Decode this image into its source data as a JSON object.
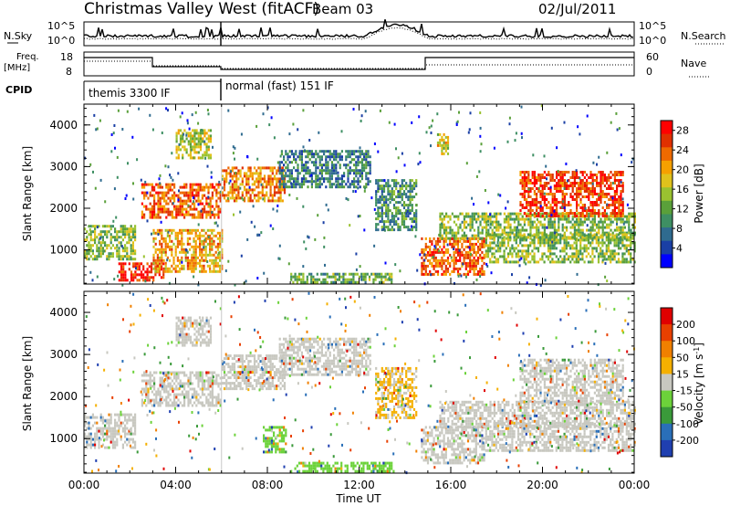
{
  "header": {
    "title": "Christmas Valley West (fitACF)",
    "beam": "Beam 03",
    "date": "02/Jul/2011"
  },
  "left_labels": {
    "nsky": "N.Sky",
    "freq_line1": "Freq.",
    "freq_line2": "[MHz]",
    "cpid": "CPID"
  },
  "right_labels": {
    "nsearch": "N.Search",
    "nave": "Nave"
  },
  "panel_ticks": {
    "noise_left_top": "10^5",
    "noise_left_bottom": "10^0",
    "noise_right_top": "10^5",
    "noise_right_bottom": "10^0",
    "freq_left_top": "18",
    "freq_left_bottom": "8",
    "freq_right_top": "60",
    "freq_right_bottom": "0"
  },
  "cpid_segments": [
    {
      "label": "themis 3300 IF",
      "start_hour": 0,
      "end_hour": 6
    },
    {
      "label": "normal (fast) 151 IF",
      "start_hour": 6,
      "end_hour": 24
    }
  ],
  "chart_data": [
    {
      "type": "heatmap",
      "name": "Power",
      "ylabel": "Slant Range [km]",
      "xlabel": "",
      "xlim": [
        0,
        24
      ],
      "ylim": [
        180,
        4500
      ],
      "yticks": [
        1000,
        2000,
        3000,
        4000
      ],
      "colorbar": {
        "label": "Power [dB]",
        "ticks": [
          "4",
          "8",
          "12",
          "16",
          "20",
          "24",
          "28"
        ],
        "range": [
          0,
          30
        ],
        "colors": [
          "#0000ff",
          "#1a3fa5",
          "#2f6b8f",
          "#3e8f63",
          "#5aa03a",
          "#9ac230",
          "#e0c21c",
          "#f5a000",
          "#ee6a00",
          "#e03000",
          "#ff0000"
        ]
      },
      "regions": [
        {
          "x": [
            0.0,
            2.2
          ],
          "y": [
            800,
            1600
          ],
          "value": 14
        },
        {
          "x": [
            2.5,
            6.0
          ],
          "y": [
            1800,
            2600
          ],
          "value": 24
        },
        {
          "x": [
            6.0,
            8.8
          ],
          "y": [
            2200,
            3000
          ],
          "value": 22
        },
        {
          "x": [
            1.5,
            3.5
          ],
          "y": [
            300,
            700
          ],
          "value": 27
        },
        {
          "x": [
            3.0,
            6.0
          ],
          "y": [
            500,
            1500
          ],
          "value": 20
        },
        {
          "x": [
            8.5,
            12.5
          ],
          "y": [
            2500,
            3400
          ],
          "value": 8
        },
        {
          "x": [
            12.7,
            14.5
          ],
          "y": [
            1500,
            2700
          ],
          "value": 10
        },
        {
          "x": [
            14.7,
            17.5
          ],
          "y": [
            400,
            1300
          ],
          "value": 24
        },
        {
          "x": [
            15.5,
            24.0
          ],
          "y": [
            1300,
            1900
          ],
          "value": 14
        },
        {
          "x": [
            17.5,
            24.0
          ],
          "y": [
            700,
            1400
          ],
          "value": 14
        },
        {
          "x": [
            19.0,
            23.5
          ],
          "y": [
            1800,
            2900
          ],
          "value": 26
        },
        {
          "x": [
            9.0,
            13.5
          ],
          "y": [
            200,
            450
          ],
          "value": 12
        },
        {
          "x": [
            15.4,
            15.9
          ],
          "y": [
            3300,
            3800
          ],
          "value": 18
        },
        {
          "x": [
            4.0,
            5.5
          ],
          "y": [
            3200,
            3900
          ],
          "value": 16
        }
      ]
    },
    {
      "type": "heatmap",
      "name": "Velocity",
      "ylabel": "Slant Range [km]",
      "xlabel": "Time UT",
      "xlim": [
        0,
        24
      ],
      "ylim": [
        180,
        4500
      ],
      "xticks": [
        "00:00",
        "04:00",
        "08:00",
        "12:00",
        "16:00",
        "20:00",
        "00:00"
      ],
      "yticks": [
        1000,
        2000,
        3000,
        4000
      ],
      "colorbar": {
        "label": "Velocity [m s^-1]",
        "ticks": [
          "200",
          "100",
          "50",
          "15",
          "-15",
          "-50",
          "-100",
          "-200"
        ],
        "range": [
          -250,
          250
        ],
        "colors": [
          "#1f3fb0",
          "#2a6fb8",
          "#3a9a3a",
          "#6cd23a",
          "#c8c8c0",
          "#f5b000",
          "#f08000",
          "#e84000",
          "#e00000"
        ]
      },
      "regions": [
        {
          "x": [
            0.0,
            2.2
          ],
          "y": [
            800,
            1600
          ],
          "value": 0
        },
        {
          "x": [
            2.5,
            6.0
          ],
          "y": [
            1800,
            2600
          ],
          "value": 0
        },
        {
          "x": [
            6.0,
            8.8
          ],
          "y": [
            2200,
            3000
          ],
          "value": 0
        },
        {
          "x": [
            8.5,
            12.5
          ],
          "y": [
            2500,
            3400
          ],
          "value": 0
        },
        {
          "x": [
            7.8,
            8.8
          ],
          "y": [
            700,
            1300
          ],
          "value": -60
        },
        {
          "x": [
            9.0,
            13.5
          ],
          "y": [
            200,
            450
          ],
          "value": -60
        },
        {
          "x": [
            12.7,
            14.5
          ],
          "y": [
            1500,
            2700
          ],
          "value": 30
        },
        {
          "x": [
            14.7,
            17.5
          ],
          "y": [
            400,
            1300
          ],
          "value": 0
        },
        {
          "x": [
            15.5,
            24.0
          ],
          "y": [
            1300,
            1900
          ],
          "value": 0
        },
        {
          "x": [
            17.5,
            24.0
          ],
          "y": [
            700,
            1400
          ],
          "value": 0
        },
        {
          "x": [
            19.0,
            23.5
          ],
          "y": [
            1800,
            2900
          ],
          "value": 0
        },
        {
          "x": [
            4.0,
            5.5
          ],
          "y": [
            3200,
            3900
          ],
          "value": 0
        }
      ]
    }
  ]
}
